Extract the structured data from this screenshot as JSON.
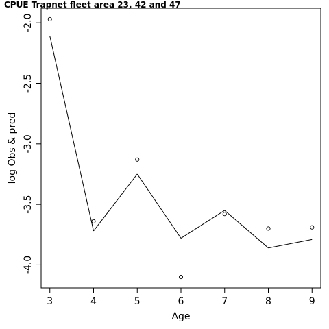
{
  "chart_data": {
    "type": "line",
    "title": "CPUE Trapnet fleet area 23, 42 and 47",
    "xlabel": "Age",
    "ylabel": "log Obs & pred",
    "x_ticks": [
      "3",
      "4",
      "5",
      "6",
      "7",
      "8",
      "9"
    ],
    "y_ticks": [
      "-2.0",
      "-2.5",
      "-3.0",
      "-3.5",
      "-4.0"
    ],
    "xlim": [
      2.8,
      9.2
    ],
    "ylim": [
      -4.19,
      -1.88
    ],
    "grid": false,
    "series": [
      {
        "kind": "points",
        "x": [
          3,
          4,
          5,
          6,
          7,
          8,
          9
        ],
        "y": [
          -1.97,
          -3.64,
          -3.13,
          -4.1,
          -3.58,
          -3.7,
          -3.69
        ]
      },
      {
        "kind": "line",
        "x": [
          3,
          4,
          5,
          6,
          7,
          8,
          9
        ],
        "y": [
          -2.11,
          -3.72,
          -3.25,
          -3.78,
          -3.55,
          -3.86,
          -3.79
        ]
      }
    ],
    "colors": {
      "line": "#000000",
      "points": "#000000",
      "axis": "#000000"
    }
  }
}
